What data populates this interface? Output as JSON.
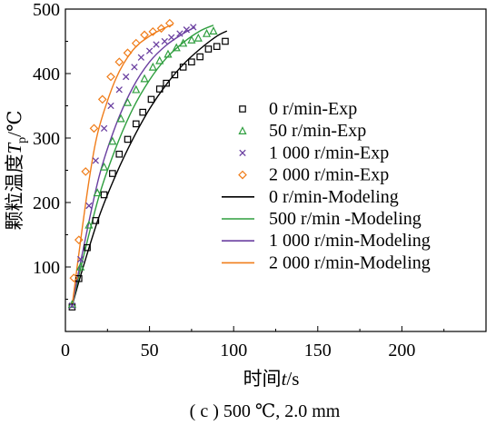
{
  "chart_data": {
    "type": "line",
    "caption": "( c ) 500 ℃, 2.0 mm",
    "xlabel": {
      "main": "时间",
      "var": "t",
      "unit": "/s"
    },
    "ylabel": {
      "main": "颗粒温度",
      "var": "T",
      "sub": "p",
      "unit": "/℃"
    },
    "xlim": [
      0,
      250
    ],
    "ylim": [
      0,
      500
    ],
    "xticks": [
      "0",
      "50",
      "100",
      "150",
      "200"
    ],
    "xtick_values": [
      0,
      50,
      100,
      150,
      200
    ],
    "yticks": [
      "100",
      "200",
      "300",
      "400",
      "500"
    ],
    "ytick_values": [
      100,
      200,
      300,
      400,
      500
    ],
    "series": [
      {
        "name": "0 r/min-Exp",
        "kind": "scatter",
        "marker": "square",
        "color": "#000000",
        "x": [
          4,
          8,
          13,
          18,
          23,
          28,
          32,
          37,
          42,
          46,
          51,
          56,
          60,
          65,
          70,
          75,
          80,
          85,
          90,
          95
        ],
        "y": [
          38,
          82,
          130,
          172,
          212,
          245,
          275,
          298,
          322,
          340,
          360,
          376,
          385,
          398,
          410,
          418,
          426,
          438,
          442,
          450
        ]
      },
      {
        "name": "50 r/min-Exp",
        "kind": "scatter",
        "marker": "triangle",
        "color": "#2e9e3e",
        "x": [
          4,
          9,
          14,
          19,
          23,
          28,
          33,
          37,
          42,
          47,
          52,
          56,
          61,
          66,
          70,
          75,
          79,
          84,
          88
        ],
        "y": [
          42,
          100,
          165,
          215,
          255,
          295,
          330,
          355,
          375,
          392,
          410,
          420,
          430,
          440,
          447,
          452,
          455,
          462,
          466
        ]
      },
      {
        "name": "1 000 r/min-Exp",
        "kind": "scatter",
        "marker": "x",
        "color": "#6a3fa0",
        "x": [
          4,
          9,
          14,
          18,
          23,
          27,
          32,
          36,
          41,
          45,
          50,
          54,
          59,
          63,
          68,
          72,
          76
        ],
        "y": [
          40,
          112,
          195,
          265,
          315,
          350,
          375,
          395,
          410,
          425,
          435,
          445,
          450,
          456,
          462,
          468,
          472
        ]
      },
      {
        "name": "2 000 r/min-Exp",
        "kind": "scatter",
        "marker": "diamond",
        "color": "#f07d1a",
        "x": [
          5,
          8,
          12,
          17,
          22,
          27,
          32,
          37,
          42,
          47,
          52,
          57,
          62
        ],
        "y": [
          83,
          142,
          248,
          315,
          360,
          395,
          418,
          432,
          447,
          460,
          465,
          470,
          478
        ]
      },
      {
        "name": "0 r/min-Modeling",
        "kind": "line",
        "color": "#000000",
        "x": [
          4,
          10,
          20,
          30,
          40,
          50,
          60,
          70,
          80,
          90,
          96
        ],
        "y": [
          40,
          95,
          178,
          243,
          298,
          345,
          383,
          414,
          438,
          458,
          466
        ]
      },
      {
        "name": "500 r/min -Modeling",
        "kind": "line",
        "color": "#2e9e3e",
        "x": [
          4,
          10,
          20,
          30,
          40,
          50,
          60,
          70,
          80,
          88
        ],
        "y": [
          40,
          108,
          210,
          285,
          345,
          390,
          424,
          448,
          466,
          475
        ]
      },
      {
        "name": "1 000 r/min-Modeling",
        "kind": "line",
        "color": "#6a3fa0",
        "x": [
          4,
          10,
          20,
          30,
          40,
          50,
          60,
          70,
          77
        ],
        "y": [
          40,
          120,
          240,
          320,
          378,
          418,
          444,
          462,
          472
        ]
      },
      {
        "name": "2 000 r/min-Modeling",
        "kind": "line",
        "color": "#f07d1a",
        "x": [
          4,
          10,
          15,
          20,
          30,
          40,
          50,
          60,
          64
        ],
        "y": [
          40,
          160,
          250,
          316,
          392,
          436,
          458,
          472,
          476
        ]
      }
    ],
    "legend_position": "center-right",
    "grid": false
  }
}
